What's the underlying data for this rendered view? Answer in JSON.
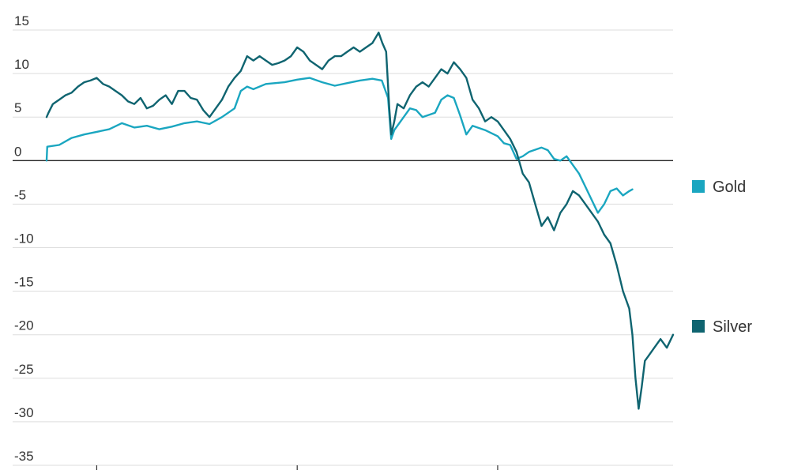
{
  "chart_data": {
    "type": "line",
    "title": "",
    "xlabel": "",
    "ylabel": "",
    "ylim": [
      -35,
      15
    ],
    "yticks": [
      15,
      10,
      5,
      0,
      -5,
      -10,
      -15,
      -20,
      -25,
      -30,
      -35
    ],
    "xlim": [
      0,
      100
    ],
    "xticks": [
      8,
      40,
      72
    ],
    "grid": true,
    "legend_position": "right",
    "colors": {
      "gold": "#1aa6c0",
      "silver": "#0f6470"
    },
    "series": [
      {
        "name": "Gold",
        "color": "#1aa6c0",
        "points": [
          [
            0,
            0.0
          ],
          [
            0.1,
            1.6
          ],
          [
            2,
            1.8
          ],
          [
            4,
            2.6
          ],
          [
            6,
            3.0
          ],
          [
            8,
            3.3
          ],
          [
            10,
            3.6
          ],
          [
            12,
            4.3
          ],
          [
            14,
            3.8
          ],
          [
            16,
            4.0
          ],
          [
            18,
            3.6
          ],
          [
            20,
            3.9
          ],
          [
            22,
            4.3
          ],
          [
            24,
            4.5
          ],
          [
            26,
            4.2
          ],
          [
            28,
            5.0
          ],
          [
            30,
            6.0
          ],
          [
            31,
            8.0
          ],
          [
            32,
            8.5
          ],
          [
            33,
            8.2
          ],
          [
            35,
            8.8
          ],
          [
            38,
            9.0
          ],
          [
            40,
            9.3
          ],
          [
            42,
            9.5
          ],
          [
            44,
            9.0
          ],
          [
            46,
            8.6
          ],
          [
            48,
            8.9
          ],
          [
            50,
            9.2
          ],
          [
            52,
            9.4
          ],
          [
            53.5,
            9.2
          ],
          [
            54.5,
            7.2
          ],
          [
            55,
            2.5
          ],
          [
            55.5,
            3.5
          ],
          [
            57,
            5.0
          ],
          [
            58,
            6.0
          ],
          [
            59,
            5.8
          ],
          [
            60,
            5.0
          ],
          [
            62,
            5.5
          ],
          [
            63,
            7.0
          ],
          [
            64,
            7.5
          ],
          [
            65,
            7.2
          ],
          [
            66,
            5.2
          ],
          [
            67,
            3.0
          ],
          [
            68,
            4.0
          ],
          [
            70,
            3.5
          ],
          [
            72,
            2.8
          ],
          [
            73,
            2.0
          ],
          [
            74,
            1.8
          ],
          [
            75,
            0.2
          ],
          [
            76,
            0.5
          ],
          [
            77,
            1.0
          ],
          [
            79,
            1.5
          ],
          [
            80,
            1.2
          ],
          [
            81,
            0.2
          ],
          [
            82,
            0.0
          ],
          [
            83,
            0.5
          ],
          [
            84,
            -0.5
          ],
          [
            85,
            -1.5
          ],
          [
            86,
            -3.0
          ],
          [
            87,
            -4.5
          ],
          [
            88,
            -6.0
          ],
          [
            89,
            -5.0
          ],
          [
            90,
            -3.5
          ],
          [
            91,
            -3.2
          ],
          [
            92,
            -4.0
          ],
          [
            93,
            -3.5
          ],
          [
            93.5,
            -3.3
          ]
        ]
      },
      {
        "name": "Silver",
        "color": "#0f6470",
        "points": [
          [
            0,
            5.0
          ],
          [
            0.3,
            5.5
          ],
          [
            1,
            6.5
          ],
          [
            2,
            7.0
          ],
          [
            3,
            7.5
          ],
          [
            4,
            7.8
          ],
          [
            5,
            8.5
          ],
          [
            6,
            9.0
          ],
          [
            7,
            9.2
          ],
          [
            8,
            9.5
          ],
          [
            9,
            8.8
          ],
          [
            10,
            8.5
          ],
          [
            11,
            8.0
          ],
          [
            12,
            7.5
          ],
          [
            13,
            6.8
          ],
          [
            14,
            6.5
          ],
          [
            15,
            7.2
          ],
          [
            16,
            6.0
          ],
          [
            17,
            6.3
          ],
          [
            18,
            7.0
          ],
          [
            19,
            7.5
          ],
          [
            20,
            6.5
          ],
          [
            21,
            8.0
          ],
          [
            22,
            8.0
          ],
          [
            23,
            7.2
          ],
          [
            24,
            7.0
          ],
          [
            25,
            5.8
          ],
          [
            26,
            5.0
          ],
          [
            27,
            6.0
          ],
          [
            28,
            7.0
          ],
          [
            29,
            8.5
          ],
          [
            30,
            9.5
          ],
          [
            31,
            10.3
          ],
          [
            32,
            12.0
          ],
          [
            33,
            11.5
          ],
          [
            34,
            12.0
          ],
          [
            35,
            11.5
          ],
          [
            36,
            11.0
          ],
          [
            37,
            11.2
          ],
          [
            38,
            11.5
          ],
          [
            39,
            12.0
          ],
          [
            40,
            13.0
          ],
          [
            41,
            12.5
          ],
          [
            42,
            11.5
          ],
          [
            43,
            11.0
          ],
          [
            44,
            10.5
          ],
          [
            45,
            11.5
          ],
          [
            46,
            12.0
          ],
          [
            47,
            12.0
          ],
          [
            48,
            12.5
          ],
          [
            49,
            13.0
          ],
          [
            50,
            12.5
          ],
          [
            51,
            13.0
          ],
          [
            52,
            13.5
          ],
          [
            53,
            14.7
          ],
          [
            53.6,
            13.5
          ],
          [
            54.2,
            12.5
          ],
          [
            54.7,
            6.0
          ],
          [
            55,
            3.0
          ],
          [
            55.5,
            4.5
          ],
          [
            56,
            6.5
          ],
          [
            57,
            6.0
          ],
          [
            58,
            7.5
          ],
          [
            59,
            8.5
          ],
          [
            60,
            9.0
          ],
          [
            61,
            8.5
          ],
          [
            62,
            9.5
          ],
          [
            63,
            10.5
          ],
          [
            64,
            10.0
          ],
          [
            65,
            11.3
          ],
          [
            66,
            10.5
          ],
          [
            67,
            9.5
          ],
          [
            68,
            7.0
          ],
          [
            69,
            6.0
          ],
          [
            70,
            4.5
          ],
          [
            71,
            5.0
          ],
          [
            72,
            4.5
          ],
          [
            73,
            3.5
          ],
          [
            74,
            2.5
          ],
          [
            75,
            1.0
          ],
          [
            76,
            -1.5
          ],
          [
            77,
            -2.5
          ],
          [
            78,
            -5.0
          ],
          [
            79,
            -7.5
          ],
          [
            80,
            -6.5
          ],
          [
            81,
            -8.0
          ],
          [
            82,
            -6.0
          ],
          [
            83,
            -5.0
          ],
          [
            84,
            -3.5
          ],
          [
            85,
            -4.0
          ],
          [
            86,
            -5.0
          ],
          [
            87,
            -6.0
          ],
          [
            88,
            -7.0
          ],
          [
            89,
            -8.5
          ],
          [
            90,
            -9.5
          ],
          [
            91,
            -12.0
          ],
          [
            92,
            -15.0
          ],
          [
            93,
            -17.0
          ],
          [
            93.5,
            -20.0
          ],
          [
            94,
            -25.0
          ],
          [
            94.5,
            -28.5
          ],
          [
            95,
            -26.0
          ],
          [
            95.5,
            -23.0
          ],
          [
            96,
            -22.5
          ],
          [
            97,
            -21.5
          ],
          [
            98,
            -20.5
          ],
          [
            99,
            -21.5
          ],
          [
            100,
            -20.0
          ]
        ]
      }
    ]
  }
}
